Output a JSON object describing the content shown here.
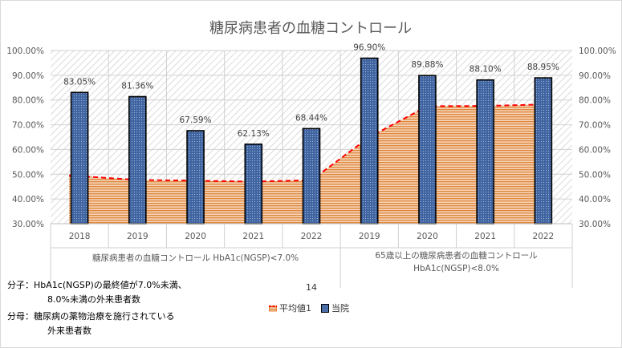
{
  "chart_data": {
    "type": "bar",
    "title": "糖尿病患者の血糖コントロール",
    "ylim": [
      0.3,
      1.0
    ],
    "yticks": [
      "30.00%",
      "40.00%",
      "50.00%",
      "60.00%",
      "70.00%",
      "80.00%",
      "90.00%",
      "100.00%"
    ],
    "grid": true,
    "legend_position": "bottom",
    "groups": [
      {
        "label": "糖尿病患者の血糖コントロール HbA1c(NGSP)<7.0%",
        "label_lines": [
          "糖尿病患者の血糖コントロール HbA1c(NGSP)<7.0%"
        ]
      },
      {
        "label": "65歳以上の糖尿病患者の血糖コントロール HbA1c(NGSP)<8.0%",
        "label_lines": [
          "65歳以上の糖尿病患者の血糖コントロール",
          "HbA1c(NGSP)<8.0%"
        ]
      }
    ],
    "categories": [
      "2018",
      "2019",
      "2020",
      "2021",
      "2022",
      "2019",
      "2020",
      "2021",
      "2022"
    ],
    "series": [
      {
        "name": "当院",
        "type": "bar",
        "color": "#4a6fa8",
        "values": [
          0.8305,
          0.8136,
          0.6759,
          0.6213,
          0.6844,
          0.969,
          0.8988,
          0.881,
          0.8895
        ],
        "labels": [
          "83.05%",
          "81.36%",
          "67.59%",
          "62.13%",
          "68.44%",
          "96.90%",
          "89.88%",
          "88.10%",
          "88.95%"
        ]
      },
      {
        "name": "平均値1",
        "type": "area",
        "color": "#e46c0a",
        "line_color": "#ff0000",
        "values": [
          0.495,
          0.477,
          0.474,
          0.47,
          0.476,
          0.65,
          0.775,
          0.776,
          0.782
        ]
      }
    ]
  },
  "notes": {
    "numerator_line1": "分子：HbA1c(NGSP)の最終値が7.0%未満、",
    "numerator_line2": "8.0%未満の外来患者数",
    "denominator_line1": "分母：糖尿病の薬物治療を施行されている",
    "denominator_line2": "外来患者数"
  },
  "page_number": "14",
  "legend": {
    "avg": "平均値1",
    "hospital": "当院"
  },
  "colors": {
    "bar": "#4a6fa8",
    "area": "#e46c0a",
    "line": "#ff0000"
  }
}
